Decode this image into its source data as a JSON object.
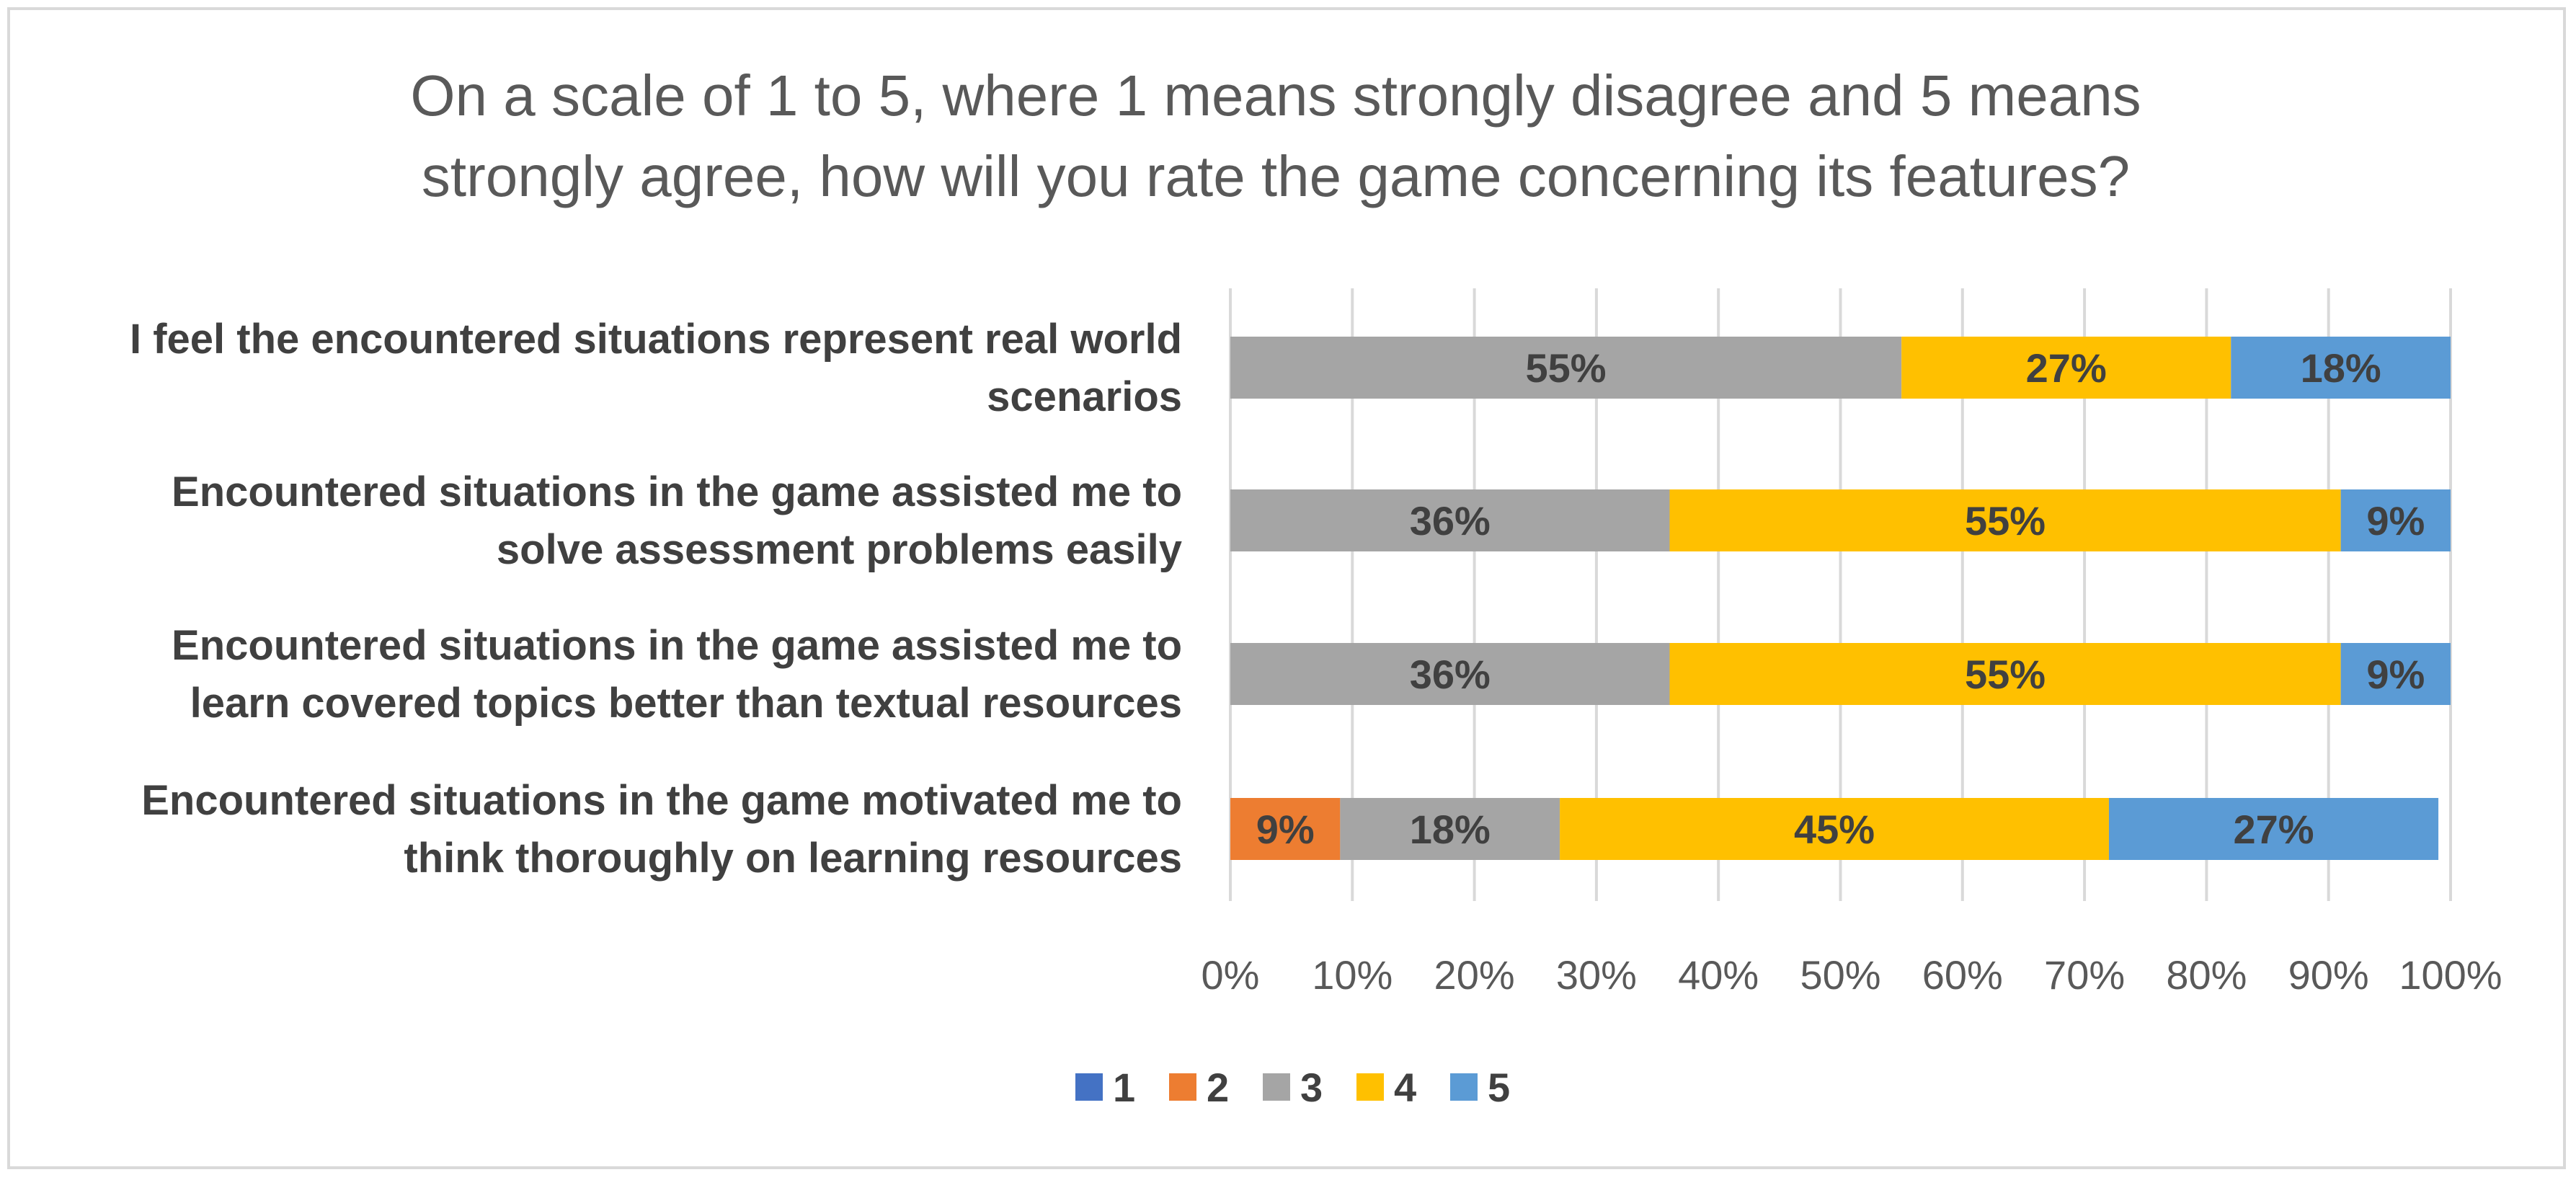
{
  "chart_data": {
    "type": "bar",
    "orientation": "horizontal",
    "stacked": "percent",
    "title": "On a scale of 1 to 5, where 1 means strongly disagree and 5 means strongly agree, how will you rate the game concerning its features?",
    "title_lines": [
      "On a scale of 1 to 5, where 1 means strongly disagree and 5 means",
      "strongly agree, how will you rate the game concerning its features?"
    ],
    "categories": [
      "I feel the encountered situations represent real world scenarios",
      "Encountered situations in the game assisted me to solve assessment problems easily",
      "Encountered situations in the game assisted me to learn covered topics better than textual resources",
      "Encountered situations in the game motivated me to think thoroughly on learning resources"
    ],
    "category_lines": [
      [
        "I feel the encountered situations represent real world",
        "scenarios"
      ],
      [
        "Encountered situations in the game assisted me to",
        "solve assessment problems easily"
      ],
      [
        "Encountered situations in the game assisted me to",
        "learn covered topics better than textual resources"
      ],
      [
        "Encountered situations in the game motivated me to",
        "think thoroughly on learning resources"
      ]
    ],
    "series": [
      {
        "name": "1",
        "color": "#4472c4",
        "values": [
          0,
          0,
          0,
          0
        ]
      },
      {
        "name": "2",
        "color": "#ed7d31",
        "values": [
          0,
          0,
          0,
          9
        ]
      },
      {
        "name": "3",
        "color": "#a5a5a5",
        "values": [
          55,
          36,
          36,
          18
        ]
      },
      {
        "name": "4",
        "color": "#ffc000",
        "values": [
          27,
          55,
          55,
          45
        ]
      },
      {
        "name": "5",
        "color": "#5b9bd5",
        "values": [
          18,
          9,
          9,
          27
        ]
      }
    ],
    "xlim": [
      0,
      100
    ],
    "xticks": [
      "0%",
      "10%",
      "20%",
      "30%",
      "40%",
      "50%",
      "60%",
      "70%",
      "80%",
      "90%",
      "100%"
    ],
    "value_suffix": "%",
    "grid": true,
    "legend_position": "bottom"
  }
}
